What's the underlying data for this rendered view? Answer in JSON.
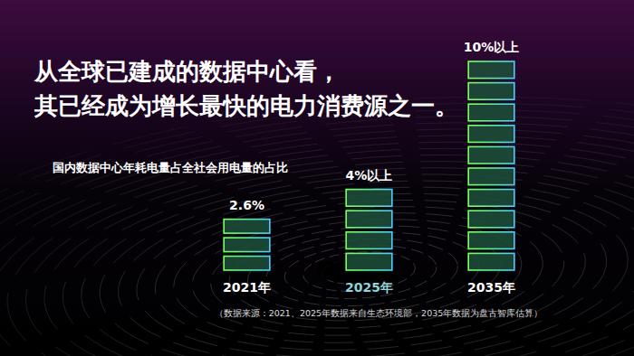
{
  "chart_data": {
    "type": "bar",
    "title": [
      "从全球已建成的数据中心看，",
      "其已经成为增长最快的电力消费源之一。"
    ],
    "subtitle": "国内数据中心年耗电量占全社会用电量的占比",
    "categories": [
      "2021年",
      "2025年",
      "2035年"
    ],
    "values": [
      2.6,
      4,
      10
    ],
    "value_labels": [
      "2.6%",
      "4%以上",
      "10%以上"
    ],
    "data_labels": true,
    "color": "#1d4f3a",
    "ylim": [
      0,
      10
    ],
    "tick_labels": false,
    "source": "（数据来源：2021、2025年数据来自生态环境部，2035年数据为盘古智库估算）"
  }
}
